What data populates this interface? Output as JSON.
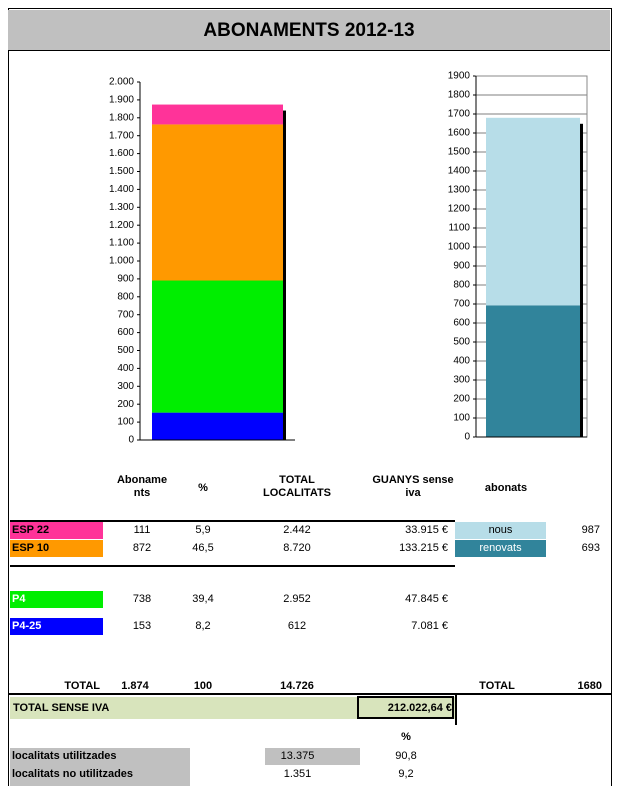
{
  "title": "ABONAMENTS 2012-13",
  "chart_data": [
    {
      "type": "stacked-bar",
      "ylim": [
        0,
        2000
      ],
      "yticks": [
        0,
        100,
        200,
        300,
        400,
        500,
        600,
        700,
        800,
        900,
        {
          "value": 1000,
          "label": "1.000"
        },
        {
          "value": 1100,
          "label": "1.100"
        },
        {
          "value": 1200,
          "label": "1.200"
        },
        {
          "value": 1300,
          "label": "1.300"
        },
        {
          "value": 1400,
          "label": "1.400"
        },
        {
          "value": 1500,
          "label": "1.500"
        },
        {
          "value": 1600,
          "label": "1.600"
        },
        {
          "value": 1700,
          "label": "1.700"
        },
        {
          "value": 1800,
          "label": "1.800"
        },
        {
          "value": 1900,
          "label": "1.900"
        },
        {
          "value": 2000,
          "label": "2.000"
        }
      ],
      "grid": false,
      "series": [
        {
          "color": "#0000ff",
          "values": [
            153
          ]
        },
        {
          "color": "#00ee00",
          "values": [
            738
          ]
        },
        {
          "color": "#ff9900",
          "values": [
            872
          ]
        },
        {
          "color": "#ff3399",
          "values": [
            111
          ]
        }
      ]
    },
    {
      "type": "stacked-bar",
      "ylim": [
        0,
        1900
      ],
      "yticks": [
        0,
        100,
        200,
        300,
        400,
        500,
        600,
        700,
        800,
        900,
        1000,
        1100,
        1200,
        1300,
        1400,
        1500,
        1600,
        1700,
        1800,
        1900
      ],
      "grid": true,
      "series": [
        {
          "color": "#31849b",
          "values": [
            693
          ]
        },
        {
          "color": "#b7dde8",
          "values": [
            987
          ]
        }
      ]
    }
  ],
  "table": {
    "header": [
      "Aboname nts",
      "%",
      "TOTAL LOCALITATS",
      "GUANYS sense iva",
      "abonats"
    ],
    "rows": [
      {
        "label": "ESP 22",
        "cells": [
          "111",
          "5,9",
          "2.442",
          "33.915 €"
        ]
      },
      {
        "label": "ESP 10",
        "cells": [
          "872",
          "46,5",
          "8.720",
          "133.215 €"
        ]
      },
      {
        "label": "P4",
        "cells": [
          "738",
          "39,4",
          "2.952",
          "47.845 €"
        ]
      },
      {
        "label": "P4-25",
        "cells": [
          "153",
          "8,2",
          "612",
          "7.081 €"
        ]
      }
    ],
    "abonats": [
      {
        "label": "nous",
        "value": "987"
      },
      {
        "label": "renovats",
        "value": "693"
      }
    ],
    "total": {
      "label": "TOTAL",
      "cells": [
        "1.874",
        "100",
        "14.726"
      ],
      "abonats_label": "TOTAL",
      "abonats_value": "1680"
    }
  },
  "total_sense_iva": {
    "label": "TOTAL SENSE IVA",
    "value": "212.022,64 €"
  },
  "utilization": {
    "header": "%",
    "rows": [
      {
        "label": "localitats utilitzades",
        "value": "13.375",
        "percent": "90,8"
      },
      {
        "label": "localitats no utilitzades",
        "value": "1.351",
        "percent": "9,2"
      }
    ]
  }
}
